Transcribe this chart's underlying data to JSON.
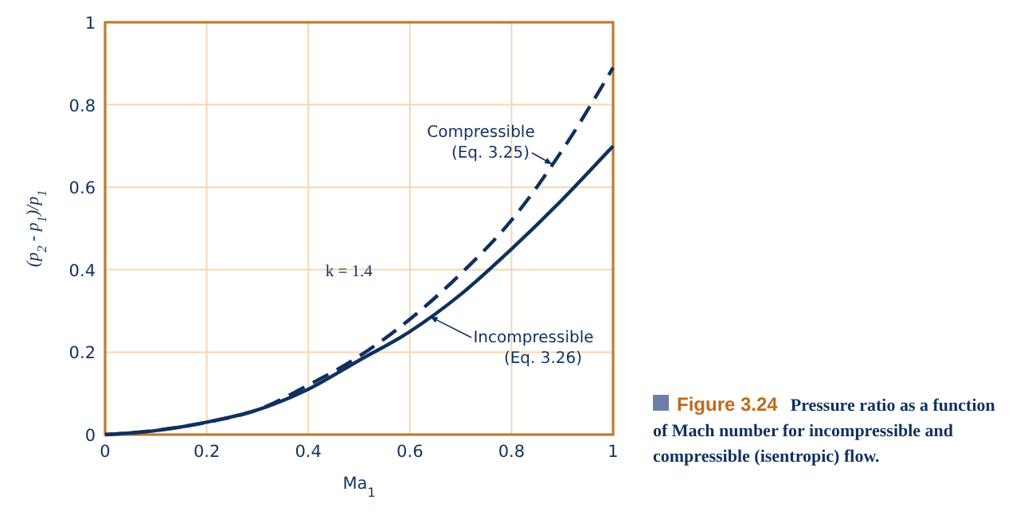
{
  "chart_data": {
    "type": "line",
    "xlabel": "Ma$_{1}$",
    "ylabel": "(p$_{2}$ - p$_{1}$)/p$_{1}$",
    "x": [
      0,
      0.1,
      0.2,
      0.3,
      0.4,
      0.5,
      0.6,
      0.7,
      0.8,
      0.9,
      1.0
    ],
    "series": [
      {
        "name": "Compressible\n(Eq. 3.25)",
        "color": "#10305e",
        "line_style": "dashed",
        "values": [
          0,
          0.01,
          0.03,
          0.06,
          0.12,
          0.19,
          0.28,
          0.39,
          0.52,
          0.69,
          0.89
        ]
      },
      {
        "name": "Incompressible\n(Eq. 3.26)",
        "color": "#10305e",
        "line_style": "solid",
        "values": [
          0,
          0.01,
          0.03,
          0.06,
          0.11,
          0.18,
          0.25,
          0.34,
          0.45,
          0.57,
          0.7
        ]
      }
    ],
    "xlim": [
      0,
      1
    ],
    "ylim": [
      0,
      1
    ],
    "xticks": [
      0,
      0.2,
      0.4,
      0.6,
      0.8,
      1
    ],
    "yticks": [
      0,
      0.2,
      0.4,
      0.6,
      0.8,
      1
    ],
    "grid": true,
    "legend": false,
    "marker": "none",
    "annotations": [
      "k = 1.4",
      "Figure 3.24",
      "Pressure ratio as a function of Mach number for incompressible and compressible (isentropic) flow."
    ]
  }
}
